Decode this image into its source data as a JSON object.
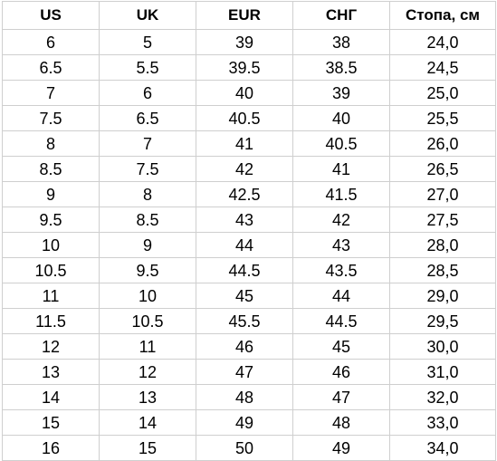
{
  "table": {
    "headers": [
      "US",
      "UK",
      "EUR",
      "СНГ",
      "Стопа, см"
    ],
    "rows": [
      [
        "6",
        "5",
        "39",
        "38",
        "24,0"
      ],
      [
        "6.5",
        "5.5",
        "39.5",
        "38.5",
        "24,5"
      ],
      [
        "7",
        "6",
        "40",
        "39",
        "25,0"
      ],
      [
        "7.5",
        "6.5",
        "40.5",
        "40",
        "25,5"
      ],
      [
        "8",
        "7",
        "41",
        "40.5",
        "26,0"
      ],
      [
        "8.5",
        "7.5",
        "42",
        "41",
        "26,5"
      ],
      [
        "9",
        "8",
        "42.5",
        "41.5",
        "27,0"
      ],
      [
        "9.5",
        "8.5",
        "43",
        "42",
        "27,5"
      ],
      [
        "10",
        "9",
        "44",
        "43",
        "28,0"
      ],
      [
        "10.5",
        "9.5",
        "44.5",
        "43.5",
        "28,5"
      ],
      [
        "11",
        "10",
        "45",
        "44",
        "29,0"
      ],
      [
        "11.5",
        "10.5",
        "45.5",
        "44.5",
        "29,5"
      ],
      [
        "12",
        "11",
        "46",
        "45",
        "30,0"
      ],
      [
        "13",
        "12",
        "47",
        "46",
        "31,0"
      ],
      [
        "14",
        "13",
        "48",
        "47",
        "32,0"
      ],
      [
        "15",
        "14",
        "49",
        "48",
        "33,0"
      ],
      [
        "16",
        "15",
        "50",
        "49",
        "34,0"
      ]
    ]
  }
}
